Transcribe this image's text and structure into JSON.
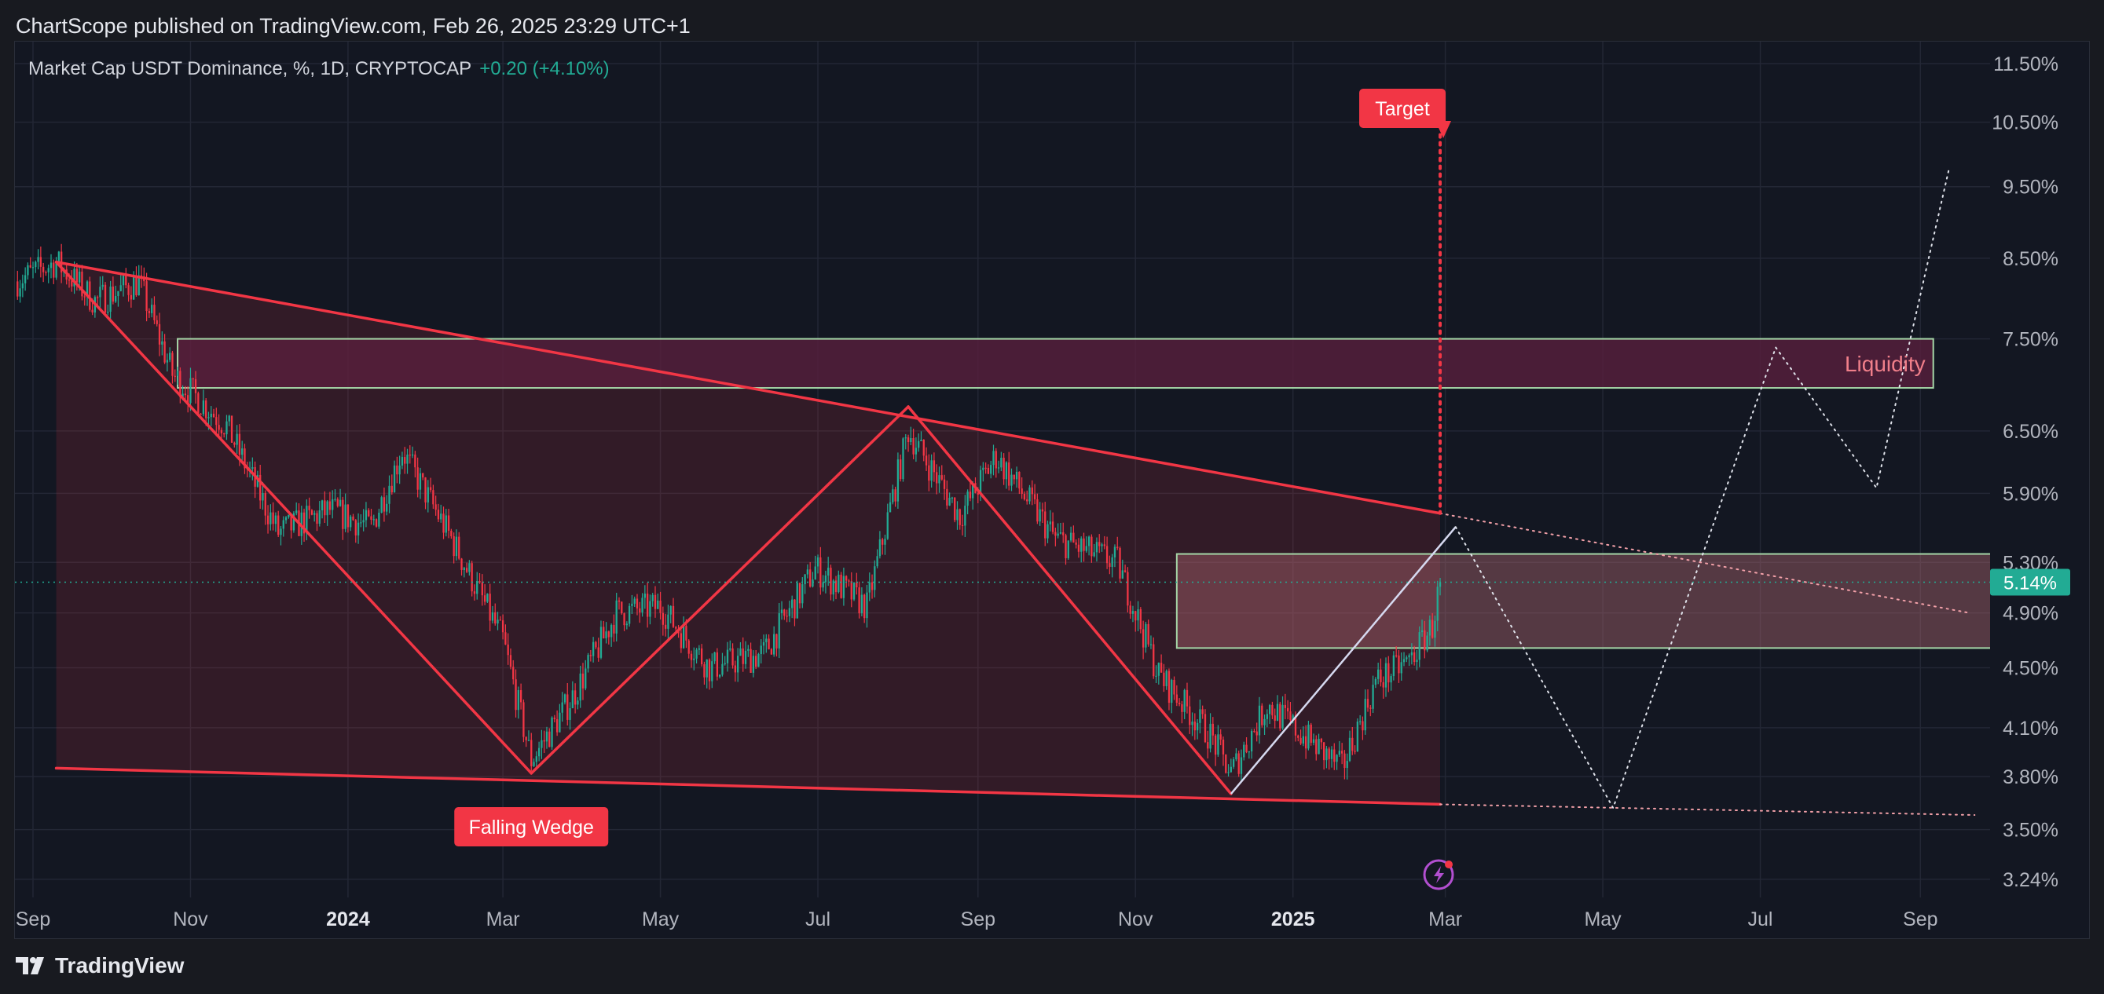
{
  "header": {
    "publisher_text": "ChartScope published on TradingView.com, Feb 26, 2025 23:29 UTC+1"
  },
  "symbol": {
    "title": "Market Cap USDT Dominance, %, 1D, CRYPTOCAP",
    "change": "+0.20 (+4.10%)"
  },
  "footer": {
    "brand": "TradingView"
  },
  "colors": {
    "background": "#131722",
    "candle_up": "#22ab94",
    "candle_down": "#f23645",
    "pattern_line": "#f23645",
    "zone_border": "#a5d6a7",
    "liquidity_fill": "#5a1f3e",
    "price_tag": "#22ab94",
    "projection": "#e0e3eb"
  },
  "icons": {
    "event_marker": "lightning-bolt-icon",
    "brand_logo": "tradingview-logo-icon"
  },
  "chart_data": {
    "type": "candlestick",
    "title": "Market Cap USDT Dominance, %, 1D, CRYPTOCAP",
    "y_scale": "log",
    "y_unit": "%",
    "x_start": "2023-08-25",
    "x_end": "2025-09-28",
    "ylim": [
      3.15,
      11.9
    ],
    "y_ticks": [
      {
        "value": 11.5,
        "label": "11.50%"
      },
      {
        "value": 10.5,
        "label": "10.50%"
      },
      {
        "value": 9.5,
        "label": "9.50%"
      },
      {
        "value": 8.5,
        "label": "8.50%"
      },
      {
        "value": 7.5,
        "label": "7.50%"
      },
      {
        "value": 6.5,
        "label": "6.50%"
      },
      {
        "value": 5.9,
        "label": "5.90%"
      },
      {
        "value": 5.3,
        "label": "5.30%"
      },
      {
        "value": 4.9,
        "label": "4.90%"
      },
      {
        "value": 4.5,
        "label": "4.50%"
      },
      {
        "value": 4.1,
        "label": "4.10%"
      },
      {
        "value": 3.8,
        "label": "3.80%"
      },
      {
        "value": 3.5,
        "label": "3.50%"
      },
      {
        "value": 3.24,
        "label": "3.24%"
      }
    ],
    "x_ticks": [
      {
        "date": "2023-09-01",
        "label": "Sep",
        "bold": false
      },
      {
        "date": "2023-11-01",
        "label": "Nov",
        "bold": false
      },
      {
        "date": "2024-01-01",
        "label": "2024",
        "bold": true
      },
      {
        "date": "2024-03-01",
        "label": "Mar",
        "bold": false
      },
      {
        "date": "2024-05-01",
        "label": "May",
        "bold": false
      },
      {
        "date": "2024-07-01",
        "label": "Jul",
        "bold": false
      },
      {
        "date": "2024-09-01",
        "label": "Sep",
        "bold": false
      },
      {
        "date": "2024-11-01",
        "label": "Nov",
        "bold": false
      },
      {
        "date": "2025-01-01",
        "label": "2025",
        "bold": true
      },
      {
        "date": "2025-03-01",
        "label": "Mar",
        "bold": false
      },
      {
        "date": "2025-05-01",
        "label": "May",
        "bold": false
      },
      {
        "date": "2025-07-01",
        "label": "Jul",
        "bold": false
      },
      {
        "date": "2025-09-01",
        "label": "Sep",
        "bold": false
      }
    ],
    "current_price": {
      "value": 5.14,
      "label": "5.14%"
    },
    "price_path": [
      {
        "date": "2023-08-25",
        "value": 8.2
      },
      {
        "date": "2023-09-10",
        "value": 8.45
      },
      {
        "date": "2023-09-25",
        "value": 7.95
      },
      {
        "date": "2023-10-12",
        "value": 8.2
      },
      {
        "date": "2023-10-25",
        "value": 7.1
      },
      {
        "date": "2023-11-15",
        "value": 6.55
      },
      {
        "date": "2023-12-05",
        "value": 5.55
      },
      {
        "date": "2023-12-25",
        "value": 5.75
      },
      {
        "date": "2024-01-10",
        "value": 5.6
      },
      {
        "date": "2024-01-22",
        "value": 6.3
      },
      {
        "date": "2024-02-10",
        "value": 5.5
      },
      {
        "date": "2024-03-01",
        "value": 4.7
      },
      {
        "date": "2024-03-12",
        "value": 3.9
      },
      {
        "date": "2024-03-28",
        "value": 4.3
      },
      {
        "date": "2024-04-14",
        "value": 4.9
      },
      {
        "date": "2024-05-01",
        "value": 4.95
      },
      {
        "date": "2024-05-20",
        "value": 4.5
      },
      {
        "date": "2024-06-10",
        "value": 4.6
      },
      {
        "date": "2024-06-30",
        "value": 5.25
      },
      {
        "date": "2024-07-20",
        "value": 4.95
      },
      {
        "date": "2024-08-05",
        "value": 6.5
      },
      {
        "date": "2024-08-25",
        "value": 5.7
      },
      {
        "date": "2024-09-08",
        "value": 6.25
      },
      {
        "date": "2024-10-01",
        "value": 5.5
      },
      {
        "date": "2024-10-25",
        "value": 5.3
      },
      {
        "date": "2024-11-10",
        "value": 4.45
      },
      {
        "date": "2024-11-30",
        "value": 4.05
      },
      {
        "date": "2024-12-08",
        "value": 3.82
      },
      {
        "date": "2024-12-22",
        "value": 4.25
      },
      {
        "date": "2025-01-05",
        "value": 4.05
      },
      {
        "date": "2025-01-20",
        "value": 3.85
      },
      {
        "date": "2025-02-02",
        "value": 4.4
      },
      {
        "date": "2025-02-15",
        "value": 4.55
      },
      {
        "date": "2025-02-24",
        "value": 4.8
      },
      {
        "date": "2025-02-27",
        "value": 5.14
      }
    ],
    "annotations": {
      "falling_wedge_label": "Falling Wedge",
      "target_label": "Target",
      "liquidity_label": "Liquidity",
      "wedge_upper": [
        {
          "date": "2023-09-10",
          "value": 8.45
        },
        {
          "date": "2025-02-27",
          "value": 5.72
        }
      ],
      "wedge_lower": [
        {
          "date": "2023-09-10",
          "value": 3.85
        },
        {
          "date": "2025-02-27",
          "value": 3.64
        }
      ],
      "wedge_upper_projection": [
        {
          "date": "2025-02-27",
          "value": 5.72
        },
        {
          "date": "2025-09-20",
          "value": 4.9
        }
      ],
      "wedge_lower_projection": [
        {
          "date": "2025-02-27",
          "value": 3.64
        },
        {
          "date": "2025-09-22",
          "value": 3.58
        }
      ],
      "zigzag": [
        {
          "date": "2023-09-10",
          "value": 8.45
        },
        {
          "date": "2024-03-12",
          "value": 3.82
        },
        {
          "date": "2024-08-05",
          "value": 6.75
        },
        {
          "date": "2024-12-08",
          "value": 3.7
        }
      ],
      "rising_line": [
        {
          "date": "2024-12-08",
          "value": 3.7
        },
        {
          "date": "2025-03-05",
          "value": 5.6
        }
      ],
      "liquidity_zone": {
        "from": "2023-10-27",
        "to": "2025-09-06",
        "high": 7.5,
        "low": 6.95
      },
      "consolidation_zone": {
        "from": "2024-11-17",
        "to": "2025-10-03",
        "high": 5.37,
        "low": 4.64
      },
      "target_point": {
        "date": "2025-02-27",
        "value": 10.5
      },
      "projection_path": [
        {
          "date": "2025-03-05",
          "value": 5.6
        },
        {
          "date": "2025-05-05",
          "value": 3.62
        },
        {
          "date": "2025-07-07",
          "value": 7.4
        },
        {
          "date": "2025-08-15",
          "value": 5.95
        },
        {
          "date": "2025-09-12",
          "value": 9.75
        }
      ]
    }
  }
}
